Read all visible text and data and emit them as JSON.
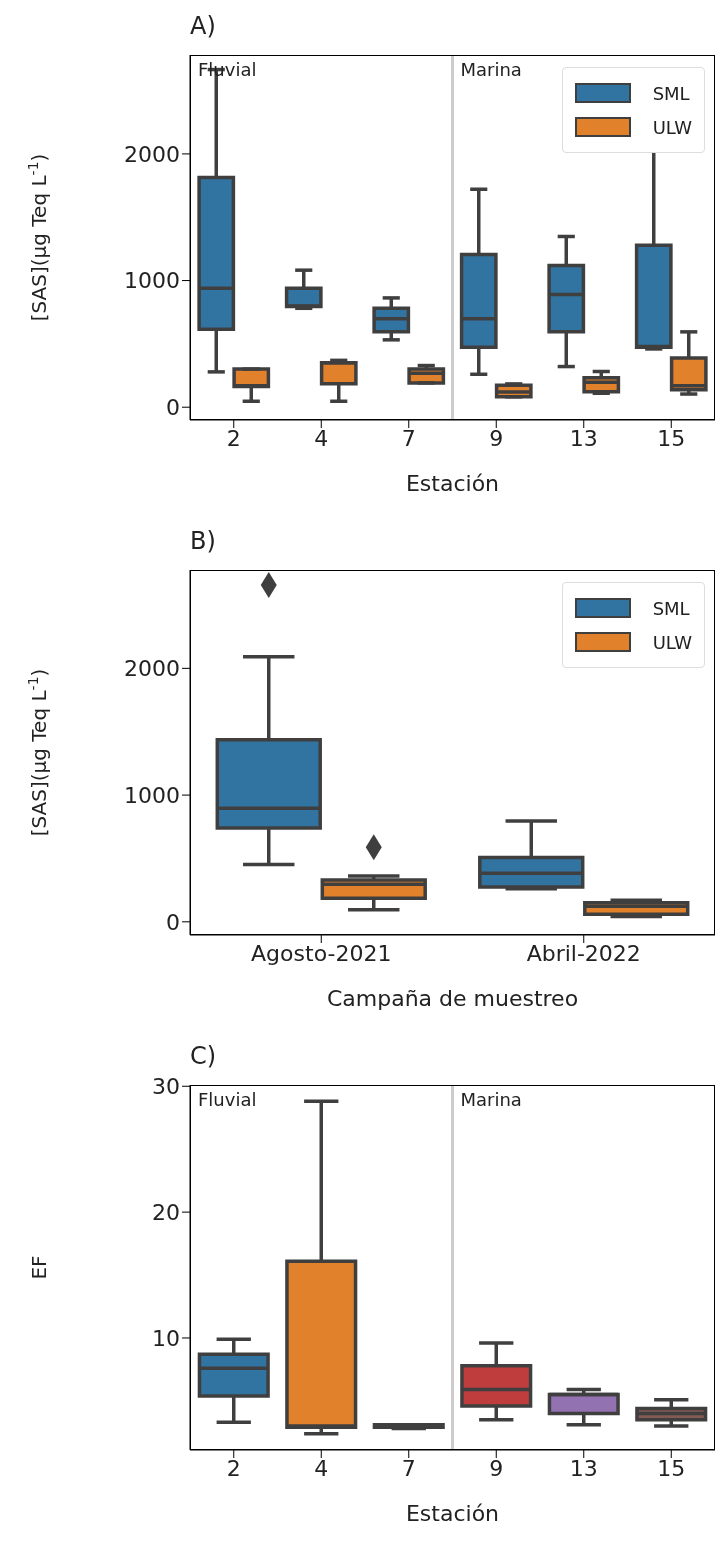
{
  "chart_data": [
    {
      "type": "box",
      "title": "A)",
      "xlabel": "Estación",
      "ylabel": "[SAS](μg Teq L$^{-1}$)",
      "categories": [
        "2",
        "4",
        "7",
        "9",
        "13",
        "15"
      ],
      "ylim": [
        -101,
        2781
      ],
      "yticks": [
        0,
        1000,
        2000
      ],
      "legend": "top right",
      "annotations": [
        "Fluvial",
        "Marina"
      ],
      "series": [
        {
          "name": "SML",
          "color": "#3274a1",
          "boxes": [
            {
              "low": 279,
              "q1": 616,
              "median": 940,
              "q3": 1814,
              "high": 2666
            },
            {
              "low": 781,
              "q1": 795,
              "median": 800,
              "q3": 940,
              "high": 1082
            },
            {
              "low": 532,
              "q1": 595,
              "median": 699,
              "q3": 781,
              "high": 863
            },
            {
              "low": 260,
              "q1": 474,
              "median": 699,
              "q3": 1205,
              "high": 1721
            },
            {
              "low": 321,
              "q1": 595,
              "median": 890,
              "q3": 1118,
              "high": 1348
            },
            {
              "low": 460,
              "q1": 474,
              "median": 479,
              "q3": 1279,
              "high": 2096
            }
          ]
        },
        {
          "name": "ULW",
          "color": "#e1812c",
          "boxes": [
            {
              "low": 47,
              "q1": 164,
              "median": 170,
              "q3": 301,
              "high": 301
            },
            {
              "low": 47,
              "q1": 186,
              "median": 351,
              "q3": 351,
              "high": 370
            },
            {
              "low": 192,
              "q1": 192,
              "median": 268,
              "q3": 301,
              "high": 329
            },
            {
              "low": 82,
              "q1": 82,
              "median": 120,
              "q3": 173,
              "high": 184
            },
            {
              "low": 110,
              "q1": 123,
              "median": 197,
              "q3": 233,
              "high": 282
            },
            {
              "low": 104,
              "q1": 137,
              "median": 170,
              "q3": 389,
              "high": 595
            }
          ]
        }
      ]
    },
    {
      "type": "box",
      "title": "B)",
      "xlabel": "Campaña de muestreo",
      "ylabel": "[SAS](μg Teq L$^{-1}$)",
      "categories": [
        "Agosto-2021",
        "Abril-2022"
      ],
      "ylim": [
        -104,
        2776
      ],
      "yticks": [
        0,
        1000,
        2000
      ],
      "legend": "top right",
      "series": [
        {
          "name": "SML",
          "color": "#3274a1",
          "boxes": [
            {
              "low": 452,
              "q1": 740,
              "median": 896,
              "q3": 1436,
              "high": 2091,
              "outliers": [
                2658
              ]
            },
            {
              "low": 260,
              "q1": 274,
              "median": 384,
              "q3": 507,
              "high": 795
            }
          ]
        },
        {
          "name": "ULW",
          "color": "#e1812c",
          "boxes": [
            {
              "low": 96,
              "q1": 186,
              "median": 296,
              "q3": 329,
              "high": 362,
              "outliers": [
                589
              ]
            },
            {
              "low": 41,
              "q1": 60,
              "median": 123,
              "q3": 151,
              "high": 170
            }
          ]
        }
      ]
    },
    {
      "type": "box",
      "title": "C)",
      "xlabel": "Estación",
      "ylabel": "EF",
      "categories": [
        "2",
        "4",
        "7",
        "9",
        "13",
        "15"
      ],
      "ylim": [
        1.1,
        30.1
      ],
      "yticks": [
        10,
        20,
        30
      ],
      "annotations": [
        "Fluvial",
        "Marina"
      ],
      "series": [
        {
          "colors": [
            "#3274a1",
            "#e1812c",
            "#3a923a",
            "#c03d3e",
            "#9372b2",
            "#845b53"
          ],
          "boxes": [
            {
              "low": 3.3,
              "q1": 5.4,
              "median": 7.6,
              "q3": 8.7,
              "high": 9.9
            },
            {
              "low": 2.4,
              "q1": 2.9,
              "median": 3.0,
              "q3": 16.1,
              "high": 28.8
            },
            {
              "low": 2.8,
              "q1": 2.9,
              "median": 3.0,
              "q3": 3.1,
              "high": 3.1
            },
            {
              "low": 3.5,
              "q1": 4.6,
              "median": 5.9,
              "q3": 7.8,
              "high": 9.6
            },
            {
              "low": 3.1,
              "q1": 4.0,
              "median": 5.5,
              "q3": 5.5,
              "high": 5.9
            },
            {
              "low": 3.0,
              "q1": 3.5,
              "median": 4.0,
              "q3": 4.4,
              "high": 5.1
            }
          ]
        }
      ]
    }
  ]
}
